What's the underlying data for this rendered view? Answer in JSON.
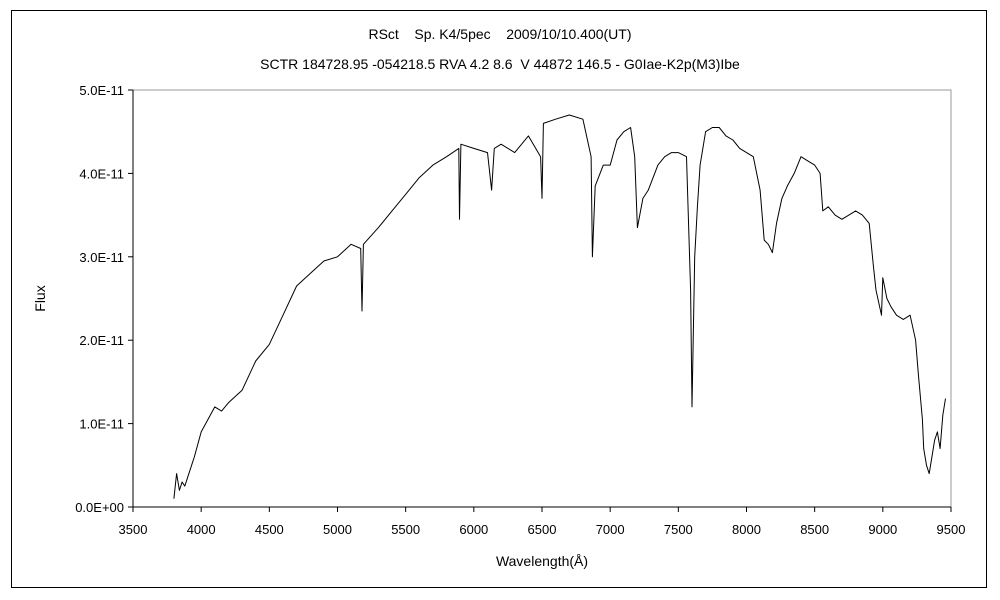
{
  "chart_data": {
    "type": "line",
    "title": "RSct    Sp. K4/5pec    2009/10/10.400(UT)",
    "subtitle": "SCTR 184728.95 -054218.5 RVA 4.2 8.6  V 44872 146.5 - G0Iae-K2p(M3)Ibe",
    "xlabel": "Wavelength(Å)",
    "ylabel": "Flux",
    "xlim": [
      3500,
      9500
    ],
    "ylim": [
      0,
      5e-11
    ],
    "x_ticks": [
      3500,
      4000,
      4500,
      5000,
      5500,
      6000,
      6500,
      7000,
      7500,
      8000,
      8500,
      9000,
      9500
    ],
    "x_tick_labels": [
      "3500",
      "4000",
      "4500",
      "5000",
      "5500",
      "6000",
      "6500",
      "7000",
      "7500",
      "8000",
      "8500",
      "9000",
      "9500"
    ],
    "y_ticks": [
      0,
      1e-11,
      2e-11,
      3e-11,
      4e-11,
      5e-11
    ],
    "y_tick_labels": [
      "0.0E+00",
      "1.0E-11",
      "2.0E-11",
      "3.0E-11",
      "4.0E-11",
      "5.0E-11"
    ],
    "grid": false,
    "legend": "none",
    "series": [
      {
        "color": "#000000",
        "x": [
          3800,
          3820,
          3840,
          3860,
          3880,
          3900,
          3950,
          4000,
          4050,
          4100,
          4150,
          4200,
          4300,
          4400,
          4500,
          4600,
          4700,
          4800,
          4900,
          5000,
          5100,
          5170,
          5180,
          5190,
          5300,
          5400,
          5500,
          5600,
          5700,
          5800,
          5890,
          5895,
          5905,
          6000,
          6100,
          6130,
          6150,
          6200,
          6300,
          6400,
          6490,
          6500,
          6510,
          6600,
          6700,
          6800,
          6860,
          6870,
          6890,
          6950,
          7000,
          7050,
          7100,
          7150,
          7180,
          7200,
          7240,
          7280,
          7350,
          7400,
          7450,
          7500,
          7560,
          7590,
          7600,
          7620,
          7640,
          7660,
          7700,
          7750,
          7800,
          7850,
          7900,
          7950,
          8000,
          8050,
          8100,
          8130,
          8160,
          8190,
          8220,
          8260,
          8300,
          8350,
          8400,
          8450,
          8500,
          8540,
          8560,
          8600,
          8650,
          8700,
          8800,
          8850,
          8900,
          8930,
          8950,
          8990,
          9000,
          9030,
          9060,
          9100,
          9150,
          9200,
          9240,
          9260,
          9290,
          9300,
          9320,
          9340,
          9360,
          9380,
          9400,
          9420,
          9440,
          9460
        ],
        "values": [
          1e-12,
          4e-12,
          2e-12,
          3e-12,
          2.5e-12,
          3.5e-12,
          6e-12,
          9e-12,
          1.05e-11,
          1.2e-11,
          1.15e-11,
          1.25e-11,
          1.4e-11,
          1.75e-11,
          1.95e-11,
          2.3e-11,
          2.65e-11,
          2.8e-11,
          2.95e-11,
          3e-11,
          3.15e-11,
          3.1e-11,
          2.35e-11,
          3.15e-11,
          3.35e-11,
          3.55e-11,
          3.75e-11,
          3.95e-11,
          4.1e-11,
          4.2e-11,
          4.3e-11,
          3.45e-11,
          4.35e-11,
          4.3e-11,
          4.25e-11,
          3.8e-11,
          4.3e-11,
          4.35e-11,
          4.25e-11,
          4.45e-11,
          4.2e-11,
          3.7e-11,
          4.6e-11,
          4.65e-11,
          4.7e-11,
          4.65e-11,
          4.2e-11,
          3e-11,
          3.85e-11,
          4.1e-11,
          4.1e-11,
          4.4e-11,
          4.5e-11,
          4.55e-11,
          4.2e-11,
          3.35e-11,
          3.7e-11,
          3.8e-11,
          4.1e-11,
          4.2e-11,
          4.25e-11,
          4.25e-11,
          4.2e-11,
          2.6e-11,
          1.2e-11,
          3e-11,
          3.6e-11,
          4.1e-11,
          4.5e-11,
          4.55e-11,
          4.55e-11,
          4.45e-11,
          4.4e-11,
          4.3e-11,
          4.25e-11,
          4.2e-11,
          3.8e-11,
          3.2e-11,
          3.15e-11,
          3.05e-11,
          3.4e-11,
          3.7e-11,
          3.85e-11,
          4e-11,
          4.2e-11,
          4.15e-11,
          4.1e-11,
          4e-11,
          3.55e-11,
          3.6e-11,
          3.5e-11,
          3.45e-11,
          3.55e-11,
          3.5e-11,
          3.4e-11,
          2.9e-11,
          2.6e-11,
          2.3e-11,
          2.75e-11,
          2.5e-11,
          2.4e-11,
          2.3e-11,
          2.25e-11,
          2.3e-11,
          2e-11,
          1.6e-11,
          1.05e-11,
          7e-12,
          5e-12,
          4e-12,
          6e-12,
          8e-12,
          9e-12,
          7e-12,
          1.1e-11,
          1.3e-11
        ]
      }
    ]
  }
}
